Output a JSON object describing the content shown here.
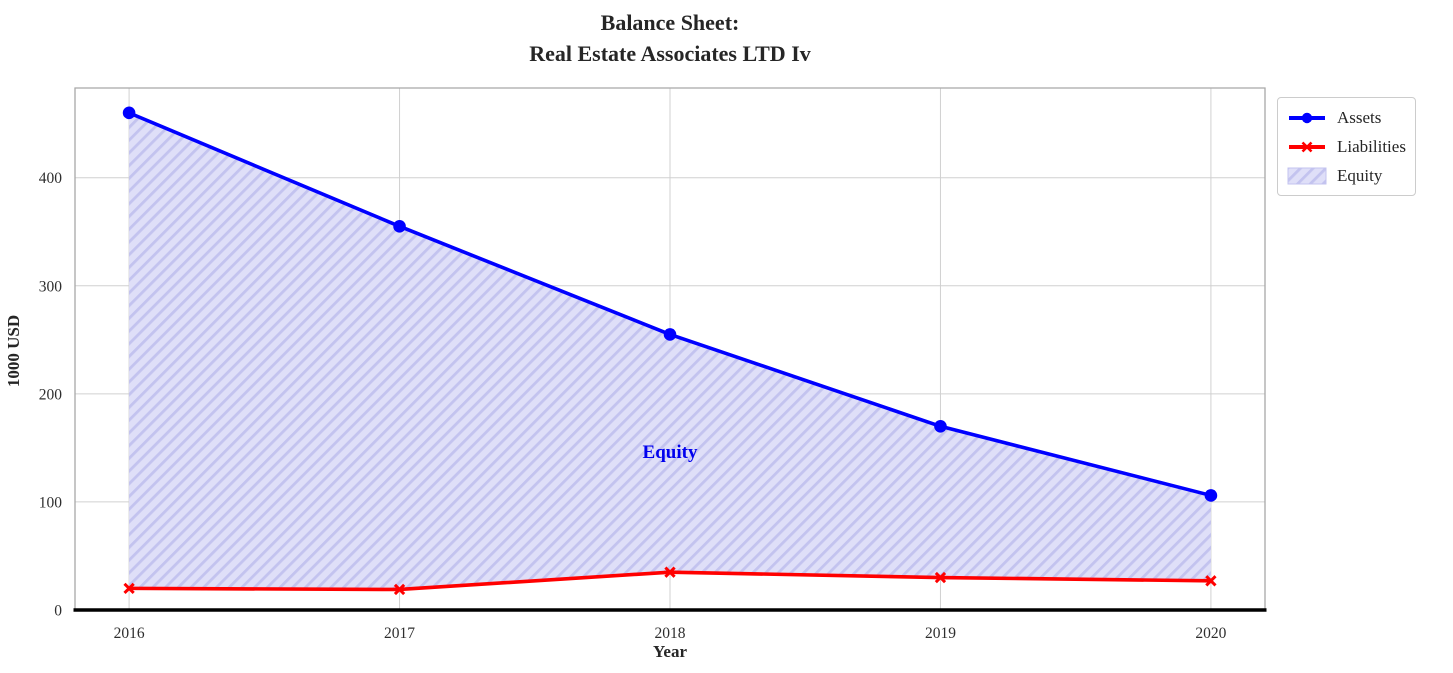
{
  "chart_data": {
    "type": "line",
    "title": "Balance Sheet:\nReal Estate Associates LTD Iv",
    "xlabel": "Year",
    "ylabel": "1000 USD",
    "x": [
      2016,
      2017,
      2018,
      2019,
      2020
    ],
    "series": [
      {
        "name": "Assets",
        "color": "#0000ff",
        "marker": "circle",
        "values": [
          460,
          355,
          255,
          170,
          106
        ]
      },
      {
        "name": "Liabilities",
        "color": "#ff0000",
        "marker": "x",
        "values": [
          20,
          19,
          35,
          30,
          27
        ]
      }
    ],
    "area": {
      "name": "Equity",
      "between": [
        "Liabilities",
        "Assets"
      ],
      "fill": "#dfdff8",
      "hatch_color": "#c3c3ef",
      "hatch": "//"
    },
    "annotation": {
      "text": "Equity",
      "x": 2018,
      "y": 145,
      "color": "#0000ee"
    },
    "xlim": [
      2015.8,
      2020.2
    ],
    "ylim": [
      0,
      483
    ],
    "xticks": [
      2016,
      2017,
      2018,
      2019,
      2020
    ],
    "yticks": [
      0,
      100,
      200,
      300,
      400
    ],
    "grid": true,
    "legend_position": "outside upper right"
  }
}
